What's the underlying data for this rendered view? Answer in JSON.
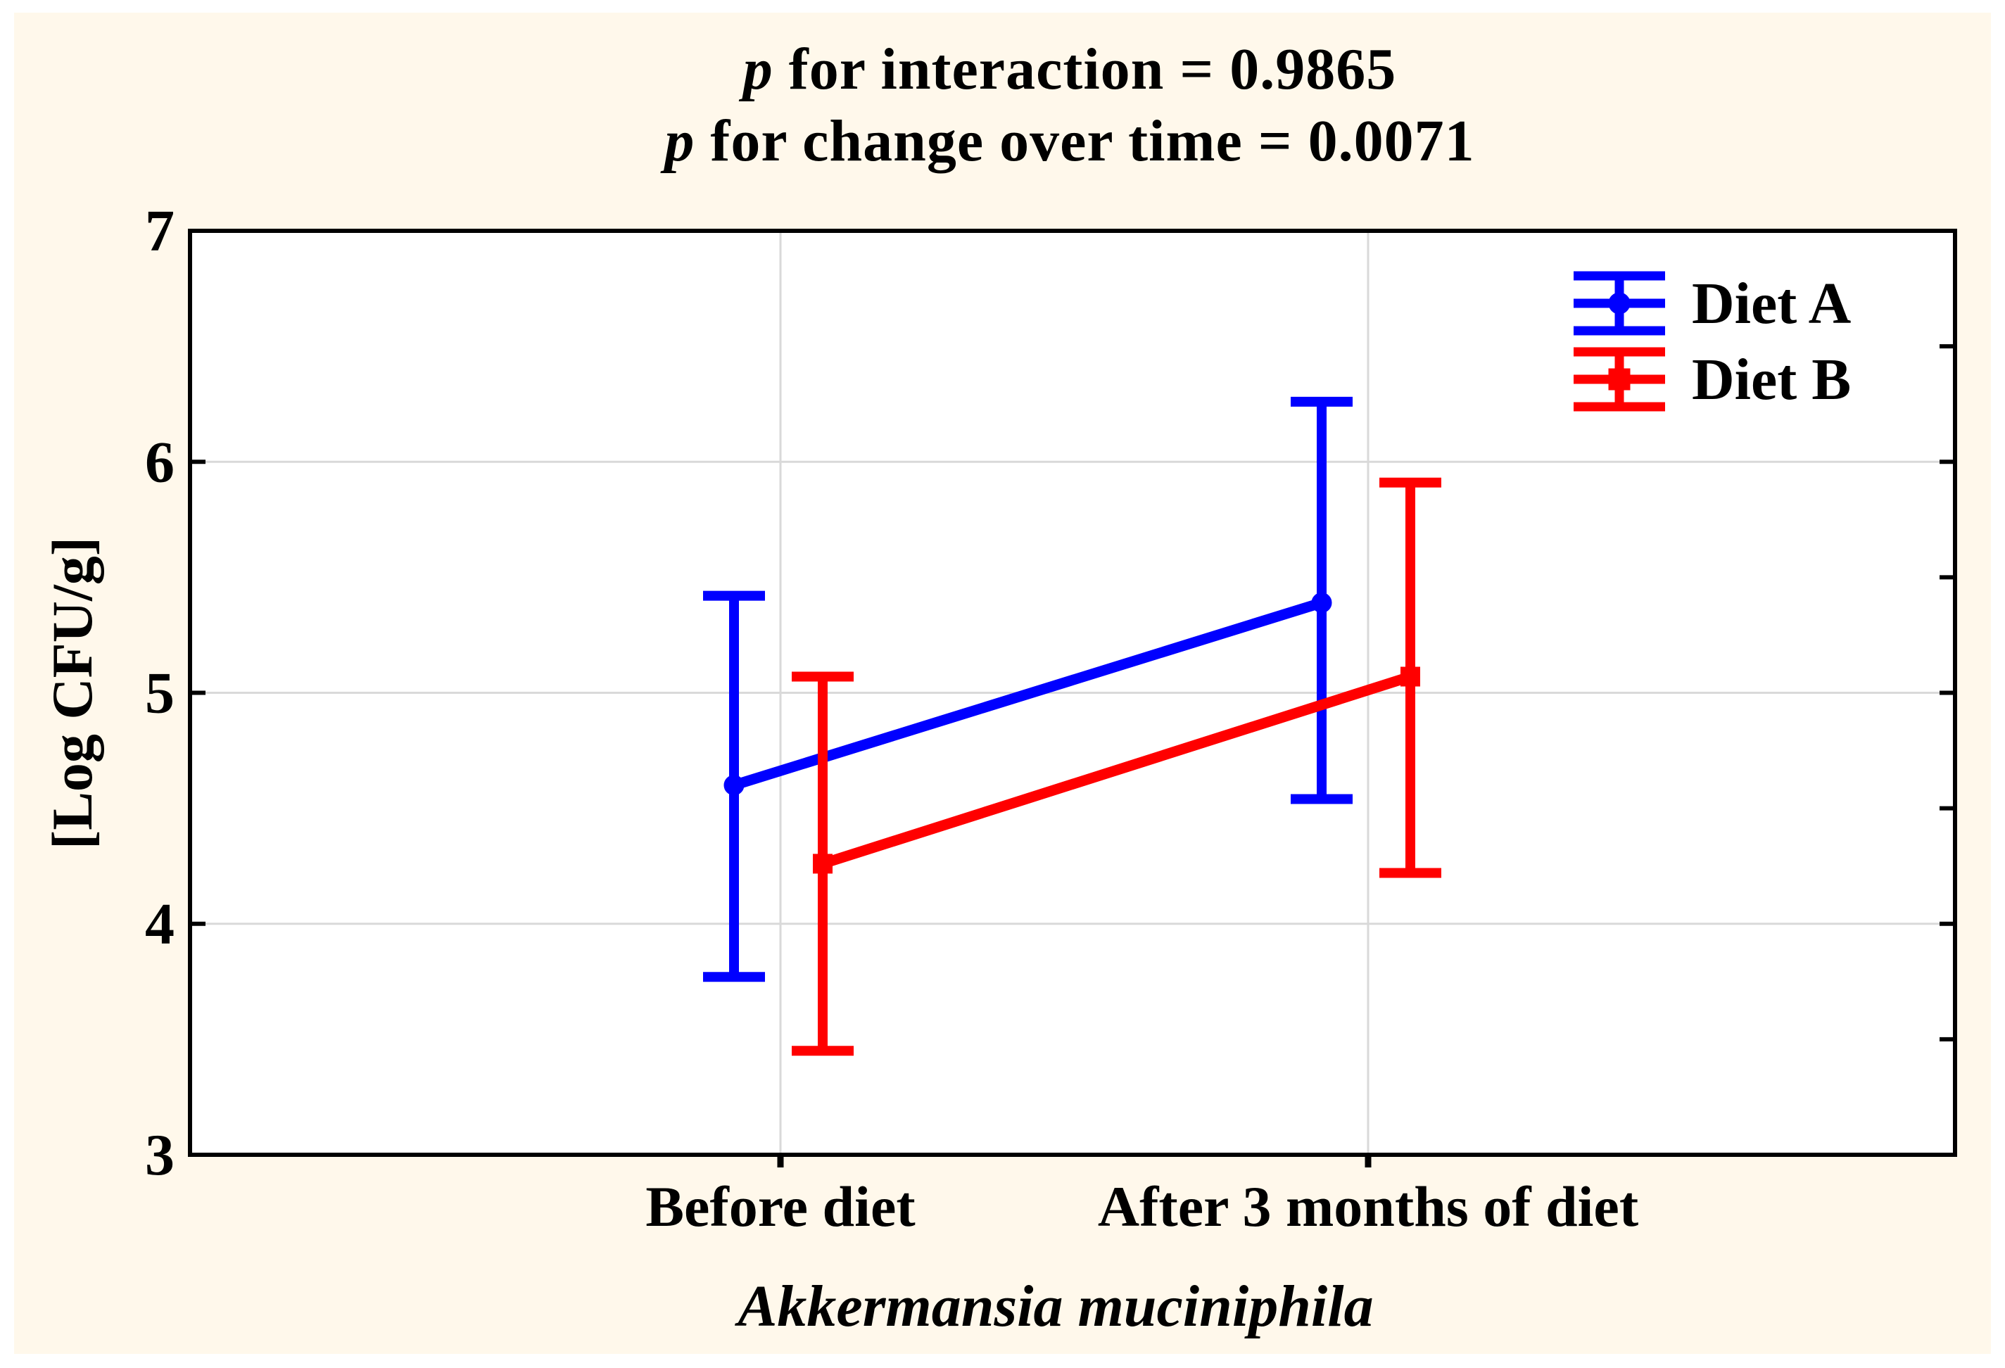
{
  "figure": {
    "background_color": "#FFF8EB",
    "title_lines": [
      {
        "italic": "p",
        "rest": " for interaction = 0.9865"
      },
      {
        "italic": "p",
        "rest": " for change over time = 0.0071"
      }
    ]
  },
  "legend": {
    "items": [
      {
        "label": "Diet A",
        "color": "#0000FF",
        "marker": "circle"
      },
      {
        "label": "Diet B",
        "color": "#FF0000",
        "marker": "square"
      }
    ]
  },
  "chart_data": {
    "type": "line",
    "subtype": "means-with-error-bars",
    "title": "p for interaction = 0.9865 ; p for change over time = 0.0071",
    "categories": [
      "Before diet",
      "After 3 months of diet"
    ],
    "xlabel": "Akkermansia muciniphila",
    "ylabel": "[Log CFU/g]",
    "ylim": [
      3,
      7
    ],
    "yticks": [
      3,
      4,
      5,
      6,
      7
    ],
    "right_edge_minor_tick_step": 0.5,
    "grid": true,
    "legend_position": "top-right",
    "grid_color": "#D9D9D9",
    "series": [
      {
        "name": "Diet A",
        "color": "#0000FF",
        "marker": "circle",
        "means": [
          4.6,
          5.39
        ],
        "ci_low": [
          3.77,
          4.54
        ],
        "ci_high": [
          5.42,
          6.26
        ]
      },
      {
        "name": "Diet B",
        "color": "#FF0000",
        "marker": "square",
        "means": [
          4.26,
          5.07
        ],
        "ci_low": [
          3.45,
          4.22
        ],
        "ci_high": [
          5.07,
          5.91
        ]
      }
    ]
  }
}
